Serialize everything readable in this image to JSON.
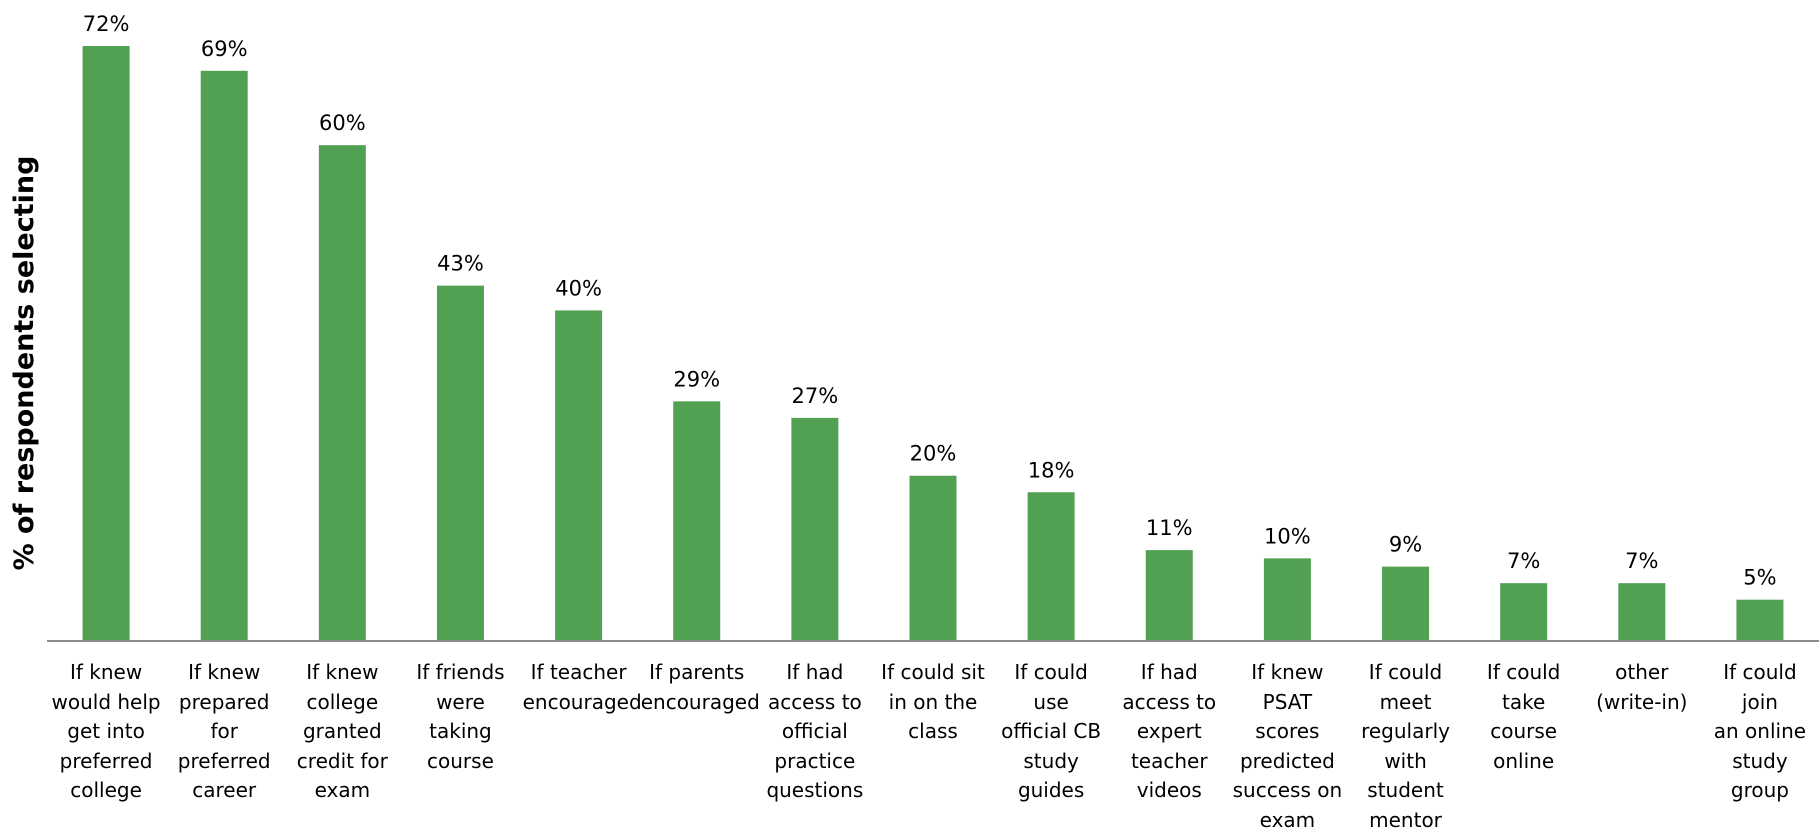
{
  "chart_data": {
    "type": "bar",
    "title": "",
    "xlabel": "",
    "ylabel": "% of respondents selecting",
    "ylim": [
      0,
      72
    ],
    "grid": false,
    "bar_color": "#52a152",
    "categories": [
      "If knew\nwould help\nget into\npreferred\ncollege",
      "If knew\nprepared\nfor\npreferred\ncareer",
      "If knew\ncollege\ngranted\ncredit for\nexam",
      "If friends\nwere taking\ncourse",
      "If teacher\nencouraged",
      "If parents\nencouraged",
      "If had\naccess to\nofficial\npractice\nquestions",
      "If could sit\nin on the\nclass",
      "If could use\nofficial CB\nstudy\nguides",
      "If had\naccess to\nexpert\nteacher\nvideos",
      "If knew\nPSAT scores\npredicted\nsuccess on\nexam",
      "If could\nmeet\nregularly\nwith\nstudent\nmentor",
      "If could\ntake course\nonline",
      "other\n(write-in)",
      "If could join\nan online\nstudy group"
    ],
    "values": [
      72,
      69,
      60,
      43,
      40,
      29,
      27,
      20,
      18,
      11,
      10,
      9,
      7,
      7,
      5
    ],
    "data_labels": [
      "72%",
      "69%",
      "60%",
      "43%",
      "40%",
      "29%",
      "27%",
      "20%",
      "18%",
      "11%",
      "10%",
      "9%",
      "7%",
      "7%",
      "5%"
    ]
  }
}
